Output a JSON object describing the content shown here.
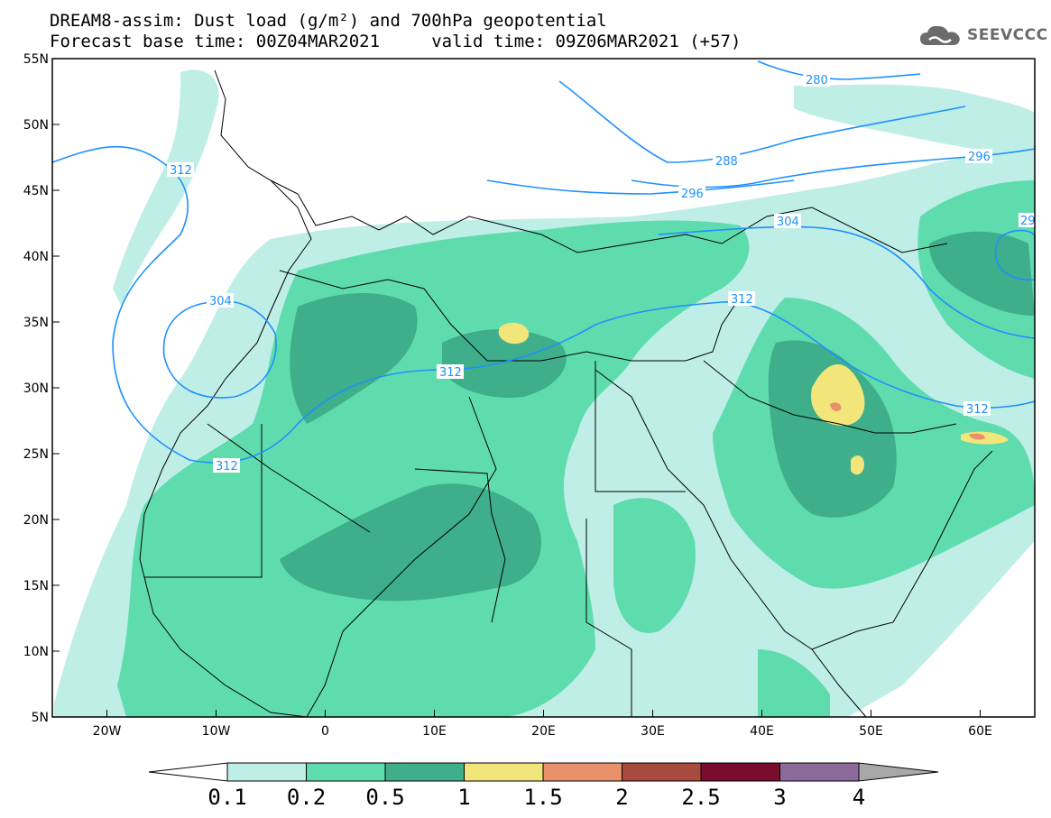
{
  "header": {
    "title_line1": "DREAM8-assim: Dust load (g/m²) and 700hPa geopotential",
    "title_line2": "Forecast base time: 00Z04MAR2021     valid time: 09Z06MAR2021 (+57)"
  },
  "brand": {
    "logo_text": "SEEVCCC",
    "logo_icon": "cloud-icon"
  },
  "map": {
    "projection": "lat-lon",
    "lon_range": [
      -25,
      65
    ],
    "lat_range": [
      5,
      55
    ],
    "lat_ticks": [
      "5N",
      "10N",
      "15N",
      "20N",
      "25N",
      "30N",
      "35N",
      "40N",
      "45N",
      "50N",
      "55N"
    ],
    "lon_ticks": [
      "20W",
      "10W",
      "0",
      "10E",
      "20E",
      "30E",
      "40E",
      "50E",
      "60E"
    ],
    "contour_labels": [
      "280",
      "288",
      "296",
      "304",
      "312",
      "312",
      "312",
      "312",
      "304",
      "296",
      "29"
    ]
  },
  "colorbar": {
    "levels": [
      "0.1",
      "0.2",
      "0.5",
      "1",
      "1.5",
      "2",
      "2.5",
      "3",
      "4"
    ],
    "colors": [
      "#bfeee6",
      "#5fdcae",
      "#3fae8a",
      "#f2e67a",
      "#e8916b",
      "#a94a3e",
      "#7a0d2e",
      "#8c6a9b",
      "#a8a8a8"
    ]
  },
  "colors": {
    "contour": "#1e90ff",
    "land_border": "#000000"
  }
}
